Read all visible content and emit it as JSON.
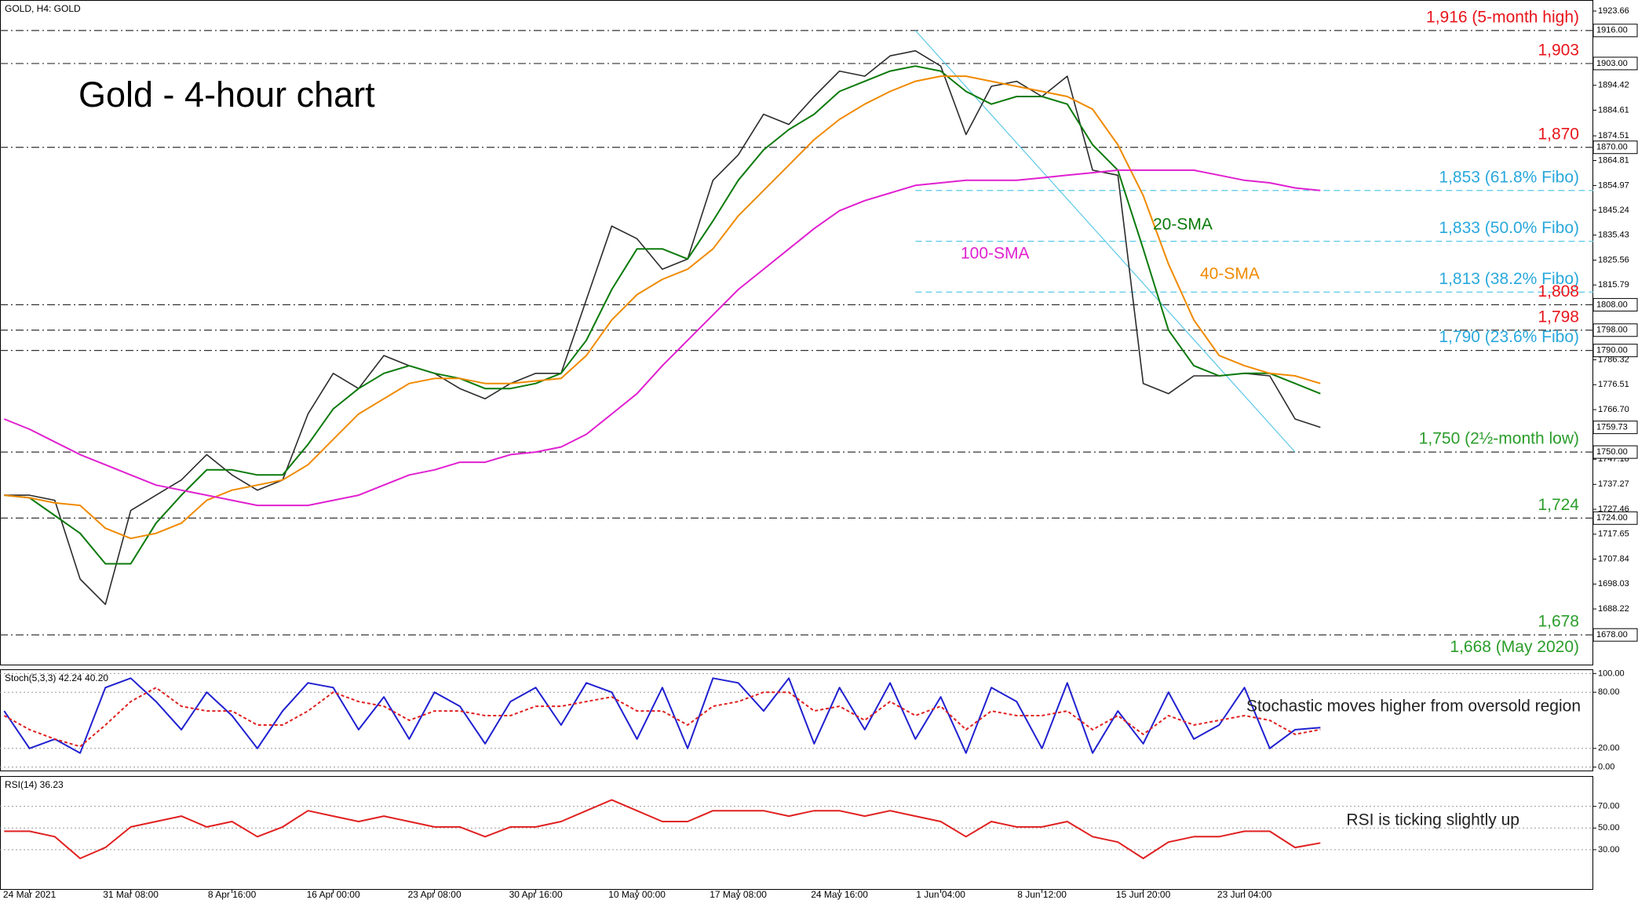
{
  "chart_data": [
    {
      "type": "line",
      "title": "Gold - 4-hour chart",
      "subtitle": "GOLD, H4: GOLD",
      "categories": [
        null,
        "24 Mar 2021",
        null,
        null,
        null,
        "31 Mar 08:00",
        null,
        null,
        null,
        "8 Apr 16:00",
        null,
        null,
        null,
        "16 Apr 00:00",
        null,
        null,
        null,
        "23 Apr 08:00",
        null,
        null,
        null,
        "30 Apr 16:00",
        null,
        null,
        null,
        "10 May 00:00",
        null,
        null,
        null,
        "17 May 08:00",
        null,
        null,
        null,
        "24 May 16:00",
        null,
        null,
        null,
        "1 Jun 04:00",
        null,
        null,
        null,
        "8 Jun 12:00",
        null,
        null,
        null,
        "15 Jun 20:00",
        null,
        null,
        null,
        "23 Jun 04:00",
        null,
        null,
        null
      ],
      "series": [
        {
          "color": "#2b2b2b",
          "values": [
            1733,
            1733,
            1731,
            1700,
            1690,
            1727,
            1733,
            1739,
            1749,
            1741,
            1735,
            1739,
            1765,
            1781,
            1775,
            1788,
            1784,
            1781,
            1775,
            1771,
            1777,
            1781,
            1781,
            1810,
            1839,
            1834,
            1822,
            1826,
            1857,
            1867,
            1883,
            1879,
            1890,
            1900,
            1898,
            1906,
            1908,
            1902,
            1875,
            1894,
            1896,
            1890,
            1898,
            1861,
            1859,
            1777,
            1773,
            1780,
            1780,
            1781,
            1780,
            1763,
            1759.73
          ]
        },
        {
          "name": "20-SMA",
          "color": "#0b7a0b",
          "values": [
            1733,
            1732,
            1725,
            1718,
            1706,
            1706,
            1722,
            1733,
            1743,
            1743,
            1741,
            1741,
            1753,
            1767,
            1775,
            1781,
            1784,
            1781,
            1779,
            1775,
            1775,
            1777,
            1781,
            1794,
            1814,
            1830,
            1830,
            1826,
            1841,
            1857,
            1869,
            1877,
            1883,
            1892,
            1896,
            1900,
            1902,
            1900,
            1892,
            1887,
            1890,
            1890,
            1887,
            1871,
            1861,
            1830,
            1798,
            1784,
            1780,
            1781,
            1781,
            1777,
            1773
          ]
        },
        {
          "name": "40-SMA",
          "color": "#f08a00",
          "values": [
            1733,
            1732,
            1730,
            1729,
            1720,
            1716,
            1718,
            1722,
            1731,
            1735,
            1737,
            1739,
            1745,
            1755,
            1765,
            1771,
            1777,
            1779,
            1779,
            1777,
            1777,
            1778,
            1779,
            1788,
            1802,
            1812,
            1818,
            1822,
            1830,
            1843,
            1853,
            1863,
            1873,
            1881,
            1887,
            1892,
            1896,
            1898,
            1898,
            1896,
            1894,
            1892,
            1890,
            1885,
            1871,
            1851,
            1824,
            1802,
            1788,
            1784,
            1781,
            1780,
            1777
          ]
        },
        {
          "name": "100-SMA",
          "color": "#e020d0",
          "values": [
            1763,
            1759,
            1754,
            1749,
            1745,
            1741,
            1737,
            1735,
            1733,
            1731,
            1729,
            1729,
            1729,
            1731,
            1733,
            1737,
            1741,
            1743,
            1746,
            1746,
            1749,
            1750,
            1752,
            1757,
            1765,
            1773,
            1784,
            1794,
            1804,
            1814,
            1822,
            1830,
            1838,
            1845,
            1849,
            1852,
            1855,
            1856,
            1857,
            1857,
            1857,
            1858,
            1859,
            1860,
            1861,
            1861,
            1861,
            1861,
            1859,
            1857,
            1856,
            1854,
            1853
          ]
        }
      ],
      "ylim": [
        1666,
        1928
      ],
      "yticks": [
        1923.66,
        1894.42,
        1884.61,
        1874.51,
        1864.81,
        1854.97,
        1845.24,
        1835.43,
        1825.56,
        1815.79,
        1786.32,
        1776.51,
        {
          "value": 1766.7,
          "label": "1766.70"
        },
        1747.18,
        1737.27,
        1727.46,
        1717.65,
        1707.84,
        1698.03,
        1688.22
      ],
      "last_price": 1759.73,
      "levels": [
        {
          "value": 1916,
          "label": "1,916 (5-month high)",
          "color": "#e8141b",
          "style": "dashdot",
          "axis_label": "1916.00"
        },
        {
          "value": 1903,
          "label": "1,903",
          "color": "#e8141b",
          "style": "dashdot",
          "axis_label": "1903.00"
        },
        {
          "value": 1870,
          "label": "1,870",
          "color": "#e8141b",
          "style": "dashdot",
          "axis_label": "1870.00"
        },
        {
          "value": 1853,
          "label": "1,853 (61.8% Fibo)",
          "color": "#29a8dc",
          "style": "fibo"
        },
        {
          "value": 1833,
          "label": "1,833 (50.0% Fibo)",
          "color": "#29a8dc",
          "style": "fibo"
        },
        {
          "value": 1813,
          "label": "1,813 (38.2% Fibo)",
          "color": "#29a8dc",
          "style": "fibo"
        },
        {
          "value": 1808,
          "label": "1,808",
          "color": "#e8141b",
          "style": "dashdot",
          "axis_label": "1808.00"
        },
        {
          "value": 1798,
          "label": "1,798",
          "color": "#e8141b",
          "style": "dashdot",
          "axis_label": "1798.00"
        },
        {
          "value": 1790,
          "label": "1,790 (23.6% Fibo)",
          "color": "#29a8dc",
          "style": "dashdot",
          "axis_label": "1790.00"
        },
        {
          "value": 1750,
          "label": "1,750 (2½-month low)",
          "color": "#2a9d2a",
          "style": "dashdot",
          "axis_label": "1750.00"
        },
        {
          "value": 1724,
          "label": "1,724",
          "color": "#2a9d2a",
          "style": "dashdot",
          "axis_label": "1724.00"
        },
        {
          "value": 1678,
          "label": "1,678",
          "color": "#2a9d2a",
          "style": "dashdot",
          "axis_label": "1678.00"
        },
        {
          "value": 1668,
          "label": "1,668 (May 2020)",
          "color": "#2a9d2a",
          "style": "none"
        }
      ]
    },
    {
      "type": "line",
      "title": "Stoch(5,3,3) 42.24 40.20",
      "note": "Stochastic moves higher from oversold region",
      "series": [
        {
          "color": "#2020d0",
          "values": [
            60,
            20,
            30,
            15,
            85,
            95,
            70,
            40,
            80,
            55,
            20,
            60,
            90,
            85,
            40,
            75,
            30,
            80,
            65,
            25,
            70,
            85,
            45,
            90,
            80,
            30,
            85,
            20,
            95,
            90,
            60,
            95,
            25,
            85,
            40,
            90,
            30,
            75,
            15,
            85,
            70,
            20,
            90,
            15,
            60,
            25,
            80,
            30,
            45,
            85,
            20,
            40,
            42.24
          ]
        },
        {
          "color": "#e02020",
          "dashed": true,
          "values": [
            55,
            40,
            30,
            22,
            45,
            70,
            85,
            65,
            60,
            60,
            45,
            45,
            60,
            80,
            70,
            65,
            50,
            60,
            60,
            55,
            55,
            65,
            65,
            70,
            75,
            60,
            60,
            45,
            65,
            70,
            80,
            80,
            60,
            65,
            50,
            70,
            55,
            65,
            40,
            60,
            55,
            55,
            60,
            40,
            55,
            35,
            55,
            45,
            50,
            55,
            50,
            35,
            40.2
          ]
        }
      ],
      "ylim": [
        -4.5,
        104.5
      ],
      "yticks": [
        {
          "value": 100,
          "label": "100.00"
        },
        {
          "value": 80,
          "label": "80.00"
        },
        {
          "value": 20,
          "label": "20.00"
        },
        {
          "value": 0,
          "label": "0.00"
        }
      ],
      "grid": true
    },
    {
      "type": "line",
      "title": "RSI(14) 36.23",
      "note": "RSI is ticking slightly up",
      "series": [
        {
          "color": "#e02020",
          "values": [
            47,
            47,
            42,
            22,
            32,
            51,
            56,
            61,
            51,
            56,
            42,
            51,
            66,
            61,
            56,
            61,
            56,
            51,
            51,
            42,
            51,
            51,
            56,
            66,
            76,
            66,
            56,
            56,
            66,
            66,
            66,
            61,
            66,
            66,
            61,
            66,
            61,
            56,
            42,
            56,
            51,
            51,
            56,
            42,
            37,
            22,
            37,
            42,
            42,
            47,
            47,
            32,
            36.23
          ]
        }
      ],
      "ylim": [
        -7,
        98
      ],
      "yticks": [
        {
          "value": 70,
          "label": "70.00"
        },
        {
          "value": 50,
          "label": "50.00"
        },
        {
          "value": 30,
          "label": "30.00"
        }
      ],
      "grid": true
    }
  ]
}
